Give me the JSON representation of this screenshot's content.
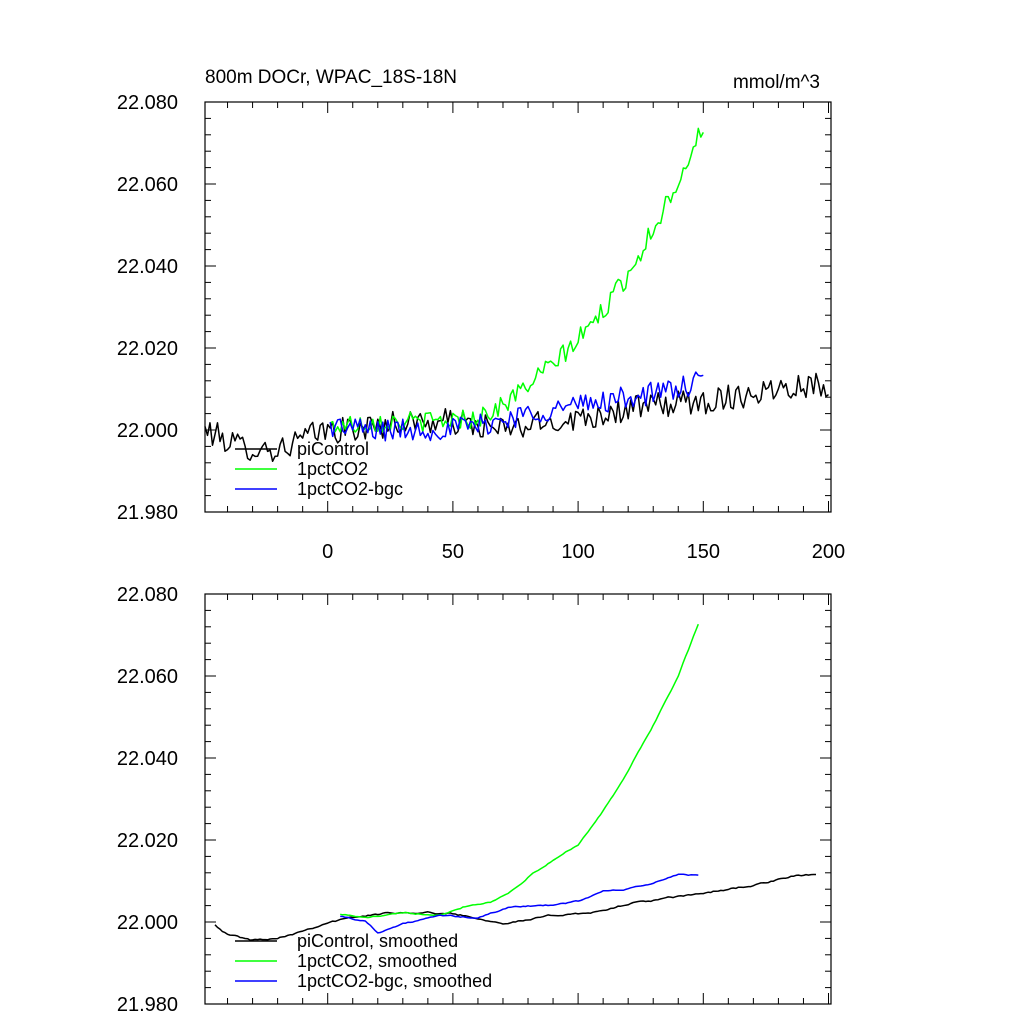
{
  "figure": {
    "title_left": "800m DOCr, WPAC_18S-18N",
    "title_right": "mmol/m^3"
  },
  "chart_data": [
    {
      "type": "line",
      "panel": "top",
      "xlim": [
        -49,
        201
      ],
      "ylim": [
        21.98,
        22.08
      ],
      "yticks": [
        21.98,
        22.0,
        22.02,
        22.04,
        22.06,
        22.08
      ],
      "ytick_labels": [
        "21.980",
        "22.000",
        "22.020",
        "22.040",
        "22.060",
        "22.080"
      ],
      "xticks": [
        0,
        50,
        100,
        150,
        200
      ],
      "xtick_labels": [
        "0",
        "50",
        "100",
        "150",
        "200"
      ],
      "grid": false,
      "legend_position": "bottom-left",
      "series": [
        {
          "name": "piControl",
          "color": "#000000",
          "noise": 0.0032,
          "x": [
            -49,
            -35,
            -20,
            -10,
            0,
            10,
            30,
            50,
            70,
            90,
            110,
            130,
            150,
            170,
            185,
            200
          ],
          "y": [
            22.0,
            21.996,
            21.995,
            21.998,
            22.0,
            22.0,
            22.002,
            22.002,
            22.0,
            22.002,
            22.004,
            22.006,
            22.007,
            22.009,
            22.011,
            22.011
          ]
        },
        {
          "name": "1pctCO2",
          "color": "#00ff00",
          "noise": 0.0025,
          "x": [
            1,
            20,
            40,
            60,
            70,
            80,
            90,
            100,
            110,
            120,
            130,
            140,
            150
          ],
          "y": [
            22.001,
            22.002,
            22.002,
            22.003,
            22.006,
            22.011,
            22.016,
            22.022,
            22.029,
            22.038,
            22.049,
            22.061,
            22.074
          ]
        },
        {
          "name": "1pctCO2-bgc",
          "color": "#0000ff",
          "noise": 0.0028,
          "x": [
            1,
            20,
            40,
            60,
            80,
            100,
            120,
            140,
            150
          ],
          "y": [
            22.001,
            22.0,
            22.0,
            22.001,
            22.004,
            22.006,
            22.008,
            22.01,
            22.012
          ]
        }
      ]
    },
    {
      "type": "line",
      "panel": "bottom",
      "xlim": [
        -49,
        201
      ],
      "ylim": [
        21.98,
        22.08
      ],
      "yticks": [
        21.98,
        22.0,
        22.02,
        22.04,
        22.06,
        22.08
      ],
      "ytick_labels": [
        "21.980",
        "22.000",
        "22.020",
        "22.040",
        "22.060",
        "22.080"
      ],
      "xticks": [
        0,
        50,
        100,
        150,
        200
      ],
      "xtick_labels": [],
      "grid": false,
      "legend_position": "bottom-left",
      "series": [
        {
          "name": "piControl, smoothed",
          "color": "#000000",
          "noise": 0.0004,
          "x": [
            -45,
            -40,
            -30,
            -20,
            -10,
            0,
            15,
            30,
            50,
            70,
            80,
            95,
            110,
            120,
            140,
            160,
            175,
            185,
            195
          ],
          "y": [
            21.9995,
            21.997,
            21.9955,
            21.9963,
            21.998,
            22.0,
            22.0015,
            22.0025,
            22.002,
            22.0,
            22.0005,
            22.002,
            22.0025,
            22.0045,
            22.006,
            22.008,
            22.0095,
            22.011,
            22.0115
          ]
        },
        {
          "name": "1pctCO2, smoothed",
          "color": "#00ff00",
          "noise": 0.0003,
          "x": [
            5,
            15,
            30,
            45,
            55,
            65,
            72,
            80,
            90,
            100,
            110,
            120,
            130,
            140,
            148
          ],
          "y": [
            22.002,
            22.001,
            22.002,
            22.002,
            22.004,
            22.005,
            22.007,
            22.011,
            22.015,
            22.019,
            22.027,
            22.037,
            22.048,
            22.06,
            22.0725
          ]
        },
        {
          "name": "1pctCO2-bgc, smoothed",
          "color": "#0000ff",
          "noise": 0.0003,
          "x": [
            5,
            15,
            20,
            30,
            45,
            60,
            75,
            90,
            100,
            110,
            120,
            130,
            140,
            148
          ],
          "y": [
            22.0015,
            22.0002,
            21.9975,
            21.9995,
            22.0015,
            22.001,
            22.004,
            22.004,
            22.005,
            22.0075,
            22.008,
            22.0095,
            22.0115,
            22.0115
          ]
        }
      ]
    }
  ]
}
